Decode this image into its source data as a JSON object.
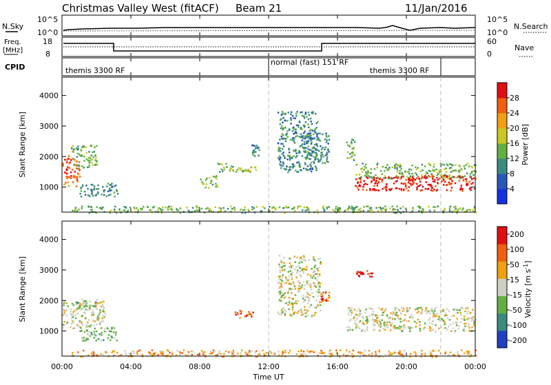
{
  "header": {
    "station": "Christmas Valley West (fitACF)",
    "beam": "Beam 21",
    "date": "11/Jan/2016"
  },
  "top_panels": {
    "nsky_label": "N.Sky",
    "nsearch_label": "N.Search",
    "noise_ticks_left": [
      "10^5",
      "10^0"
    ],
    "noise_ticks_right": [
      "10^5",
      "10^0"
    ],
    "freq_label_line1": "Freq.",
    "freq_label_line2": "[MHz]",
    "freq_ticks": [
      "18",
      "8"
    ],
    "nave_label": "Nave",
    "nave_ticks": [
      "60",
      "0"
    ],
    "cpid_label": "CPID",
    "cpid_segments": [
      {
        "label": "themis 3300 RF",
        "start_h": 0,
        "end_h": 12
      },
      {
        "label": "normal (fast) 151 RF",
        "start_h": 12,
        "end_h": 22
      },
      {
        "label": "themis 3300 RF",
        "start_h": 22,
        "end_h": 24
      }
    ]
  },
  "chart_data": [
    {
      "type": "heatmap",
      "title": "",
      "xlabel": "",
      "ylabel": "Slant Range [km]",
      "xlim": [
        0,
        24
      ],
      "ylim": [
        180,
        4600
      ],
      "yticks": [
        1000,
        2000,
        3000,
        4000
      ],
      "colorbar": {
        "label": "Power [dB]",
        "range": [
          0,
          32
        ],
        "ticks": [
          "4",
          "8",
          "12",
          "16",
          "20",
          "24",
          "28"
        ],
        "tick_values": [
          4,
          8,
          12,
          16,
          20,
          24,
          28
        ],
        "colors": [
          "#1530e0",
          "#2a58b8",
          "#3a8a80",
          "#62b040",
          "#c8c820",
          "#f0a010",
          "#f06010",
          "#e01010"
        ]
      },
      "regions": [
        {
          "x0": 0.0,
          "x1": 1.0,
          "y0": 1050,
          "y1": 2050,
          "level": 6
        },
        {
          "x0": 0.5,
          "x1": 2.0,
          "y0": 1600,
          "y1": 2400,
          "level": 3
        },
        {
          "x0": 1.0,
          "x1": 3.2,
          "y0": 700,
          "y1": 1150,
          "level": 2
        },
        {
          "x0": 8.0,
          "x1": 9.0,
          "y0": 1000,
          "y1": 1400,
          "level": 3
        },
        {
          "x0": 9.0,
          "x1": 10.0,
          "y0": 1500,
          "y1": 1800,
          "level": 3
        },
        {
          "x0": 10.0,
          "x1": 11.3,
          "y0": 1500,
          "y1": 1700,
          "level": 4
        },
        {
          "x0": 11.0,
          "x1": 11.5,
          "y0": 2000,
          "y1": 2400,
          "level": 2
        },
        {
          "x0": 12.5,
          "x1": 14.8,
          "y0": 1500,
          "y1": 3500,
          "level": 2
        },
        {
          "x0": 14.0,
          "x1": 15.5,
          "y0": 1800,
          "y1": 2800,
          "level": 2
        },
        {
          "x0": 16.5,
          "x1": 17.0,
          "y0": 1800,
          "y1": 2600,
          "level": 3
        },
        {
          "x0": 17.0,
          "x1": 24.0,
          "y0": 1300,
          "y1": 1800,
          "level": 3
        },
        {
          "x0": 17.0,
          "x1": 24.0,
          "y0": 900,
          "y1": 1400,
          "level": 7
        },
        {
          "x0": 0.5,
          "x1": 24.0,
          "y0": 180,
          "y1": 400,
          "level": 3
        }
      ]
    },
    {
      "type": "heatmap",
      "title": "",
      "xlabel": "Time UT",
      "ylabel": "Slant Range [km]",
      "xlim": [
        0,
        24
      ],
      "ylim": [
        180,
        4600
      ],
      "yticks": [
        1000,
        2000,
        3000,
        4000
      ],
      "xticks": [
        "00:00",
        "04:00",
        "08:00",
        "12:00",
        "16:00",
        "20:00",
        "00:00"
      ],
      "xtick_values": [
        0,
        4,
        8,
        12,
        16,
        20,
        24
      ],
      "colorbar": {
        "label": "Velocity [m s-1]",
        "range": [
          -250,
          250
        ],
        "ticks": [
          "200",
          "100",
          "50",
          "15",
          "-15",
          "-50",
          "-100",
          "-200"
        ],
        "colors": [
          "#2040c0",
          "#3a8a80",
          "#62b040",
          "#cfcfc4",
          "#f0a010",
          "#f06010",
          "#e01010"
        ]
      },
      "regions": [
        {
          "x0": 0.0,
          "x1": 2.5,
          "y0": 1100,
          "y1": 2000,
          "level": 3
        },
        {
          "x0": 0.8,
          "x1": 2.0,
          "y0": 1700,
          "y1": 2100,
          "level": 2
        },
        {
          "x0": 1.0,
          "x1": 3.2,
          "y0": 700,
          "y1": 1150,
          "level": 2
        },
        {
          "x0": 10.0,
          "x1": 11.3,
          "y0": 1450,
          "y1": 1700,
          "level": 5
        },
        {
          "x0": 12.5,
          "x1": 15.0,
          "y0": 1500,
          "y1": 3500,
          "level": 3
        },
        {
          "x0": 15.0,
          "x1": 15.5,
          "y0": 2000,
          "y1": 2300,
          "level": 5
        },
        {
          "x0": 16.5,
          "x1": 24.0,
          "y0": 1000,
          "y1": 1800,
          "level": 3
        },
        {
          "x0": 17.0,
          "x1": 18.0,
          "y0": 2800,
          "y1": 3000,
          "level": 6
        },
        {
          "x0": 0.5,
          "x1": 24.0,
          "y0": 180,
          "y1": 400,
          "level": 4
        }
      ]
    }
  ]
}
